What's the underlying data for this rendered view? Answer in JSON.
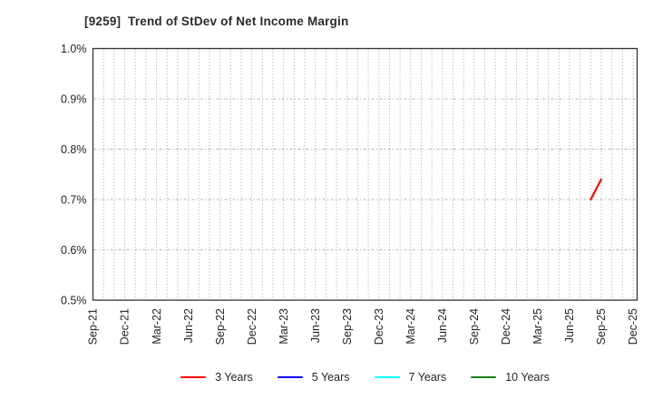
{
  "chart_data": {
    "type": "line",
    "title": "[9259]  Trend of StDev of Net Income Margin",
    "xlabel": "",
    "ylabel": "",
    "background_color": "#ffffff",
    "y_axis": {
      "min_pct": 0.5,
      "max_pct": 1.0,
      "tick_step_pct": 0.1,
      "tick_labels": [
        "1.0%",
        "0.9%",
        "0.8%",
        "0.7%",
        "0.6%",
        "0.5%"
      ]
    },
    "x_axis": {
      "unit": "month",
      "months_total": 52,
      "months_per_label": 3,
      "tick_labels": [
        "Sep-21",
        "Dec-21",
        "Mar-22",
        "Jun-22",
        "Sep-22",
        "Dec-22",
        "Mar-23",
        "Jun-23",
        "Sep-23",
        "Dec-23",
        "Mar-24",
        "Jun-24",
        "Sep-24",
        "Dec-24",
        "Mar-25",
        "Jun-25",
        "Sep-25",
        "Dec-25"
      ]
    },
    "grid": {
      "vertical_style": "dotted-monthly",
      "horizontal_style": "dash-dot",
      "color": "#b3b3b3",
      "spine_color": "#333333"
    },
    "series": [
      {
        "name": "3 Years",
        "color": "#ff0000",
        "points": [
          {
            "x_label": "Aug-25",
            "month_index": 47,
            "value_pct": 0.7
          },
          {
            "x_label": "Sep-25",
            "month_index": 48,
            "value_pct": 0.74
          }
        ]
      },
      {
        "name": "5 Years",
        "color": "#0000ff",
        "points": []
      },
      {
        "name": "7 Years",
        "color": "#00ffff",
        "points": []
      },
      {
        "name": "10 Years",
        "color": "#148014",
        "points": []
      }
    ],
    "legend": {
      "position": "bottom-center",
      "entries": [
        "3 Years",
        "5 Years",
        "7 Years",
        "10 Years"
      ]
    }
  }
}
